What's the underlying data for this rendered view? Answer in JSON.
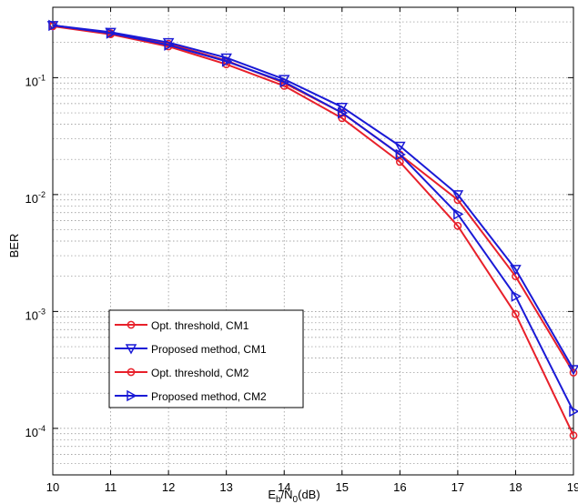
{
  "chart_data": {
    "type": "line",
    "xlabel_main": "E",
    "xlabel_sub1": "b",
    "xlabel_mid": "/N",
    "xlabel_sub2": "0",
    "xlabel_tail": "(dB)",
    "ylabel": "BER",
    "x_ticks": [
      "10",
      "11",
      "12",
      "13",
      "14",
      "15",
      "16",
      "17",
      "18",
      "19"
    ],
    "y_ticks": [
      {
        "base": "10",
        "exp": "-1",
        "value": 0.1
      },
      {
        "base": "10",
        "exp": "-2",
        "value": 0.01
      },
      {
        "base": "10",
        "exp": "-3",
        "value": 0.001
      },
      {
        "base": "10",
        "exp": "-4",
        "value": 0.0001
      }
    ],
    "xlim": [
      10,
      19
    ],
    "ylim": [
      4e-05,
      0.4
    ],
    "yscale": "log",
    "grid": true,
    "legend_position": "bottom-left",
    "x": [
      10,
      11,
      12,
      13,
      14,
      15,
      16,
      17,
      18,
      19
    ],
    "series": [
      {
        "name": "Opt. threshold, CM1",
        "color": "#e8202a",
        "marker": "circle",
        "values": [
          0.28,
          0.24,
          0.195,
          0.14,
          0.09,
          0.05,
          0.022,
          0.009,
          0.002,
          0.0003
        ]
      },
      {
        "name": "Proposed method, CM1",
        "color": "#1a1ad6",
        "marker": "triangle-down",
        "values": [
          0.28,
          0.245,
          0.2,
          0.148,
          0.097,
          0.056,
          0.026,
          0.01,
          0.0023,
          0.00032
        ]
      },
      {
        "name": "Opt. threshold, CM2",
        "color": "#e8202a",
        "marker": "circle",
        "values": [
          0.275,
          0.235,
          0.185,
          0.13,
          0.085,
          0.045,
          0.019,
          0.0054,
          0.00095,
          8.7e-05
        ]
      },
      {
        "name": "Proposed method, CM2",
        "color": "#1a1ad6",
        "marker": "triangle-right",
        "values": [
          0.28,
          0.24,
          0.19,
          0.138,
          0.092,
          0.05,
          0.022,
          0.0068,
          0.00135,
          0.00014
        ]
      }
    ]
  }
}
